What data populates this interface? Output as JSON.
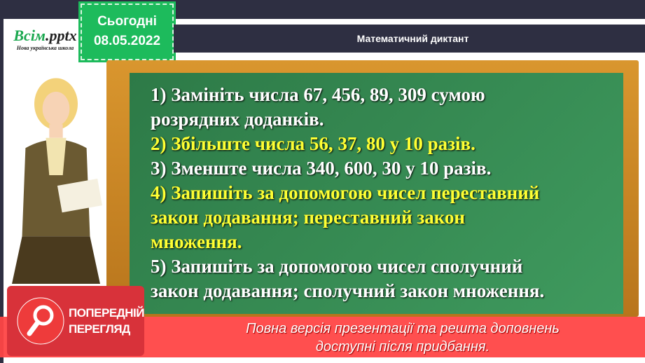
{
  "logo": {
    "brand_main": "Всім",
    "brand_ext": ".pptx",
    "subtitle": "Нова українська школа"
  },
  "date_badge": {
    "label": "Сьогодні",
    "date": "08.05.2022"
  },
  "header": {
    "title": "Математичний диктант"
  },
  "board": {
    "lines": [
      {
        "text": "1) Замініть числа 67, 456, 89, 309 сумою",
        "highlight": false
      },
      {
        "text": "розрядних доданків.",
        "highlight": false
      },
      {
        "text": "2) Збільште числа 56, 37, 80 у 10 разів.",
        "highlight": true
      },
      {
        "text": "3) Зменште числа 340, 600, 30 у 10 разів.",
        "highlight": false
      },
      {
        "text": "4) Запишіть за допомогою чисел переставний",
        "highlight": true
      },
      {
        "text": "закон додавання; переставний закон",
        "highlight": true
      },
      {
        "text": "множення.",
        "highlight": true
      },
      {
        "text": "5) Запишіть за допомогою чисел сполучний",
        "highlight": false
      },
      {
        "text": "закон додавання; сполучний закон множення.",
        "highlight": false
      }
    ]
  },
  "preview": {
    "line1": "ПОПЕРЕДНІЙ",
    "line2": "ПЕРЕГЛЯД",
    "icon": "magnifier-icon"
  },
  "notice": {
    "line1": "Повна версія презентації та решта доповнень",
    "line2": "доступні після придбання."
  },
  "colors": {
    "highlight": "#ffff33",
    "board": "#3a8f57",
    "badge": "#1dbb5c",
    "band": "#ff4646"
  }
}
